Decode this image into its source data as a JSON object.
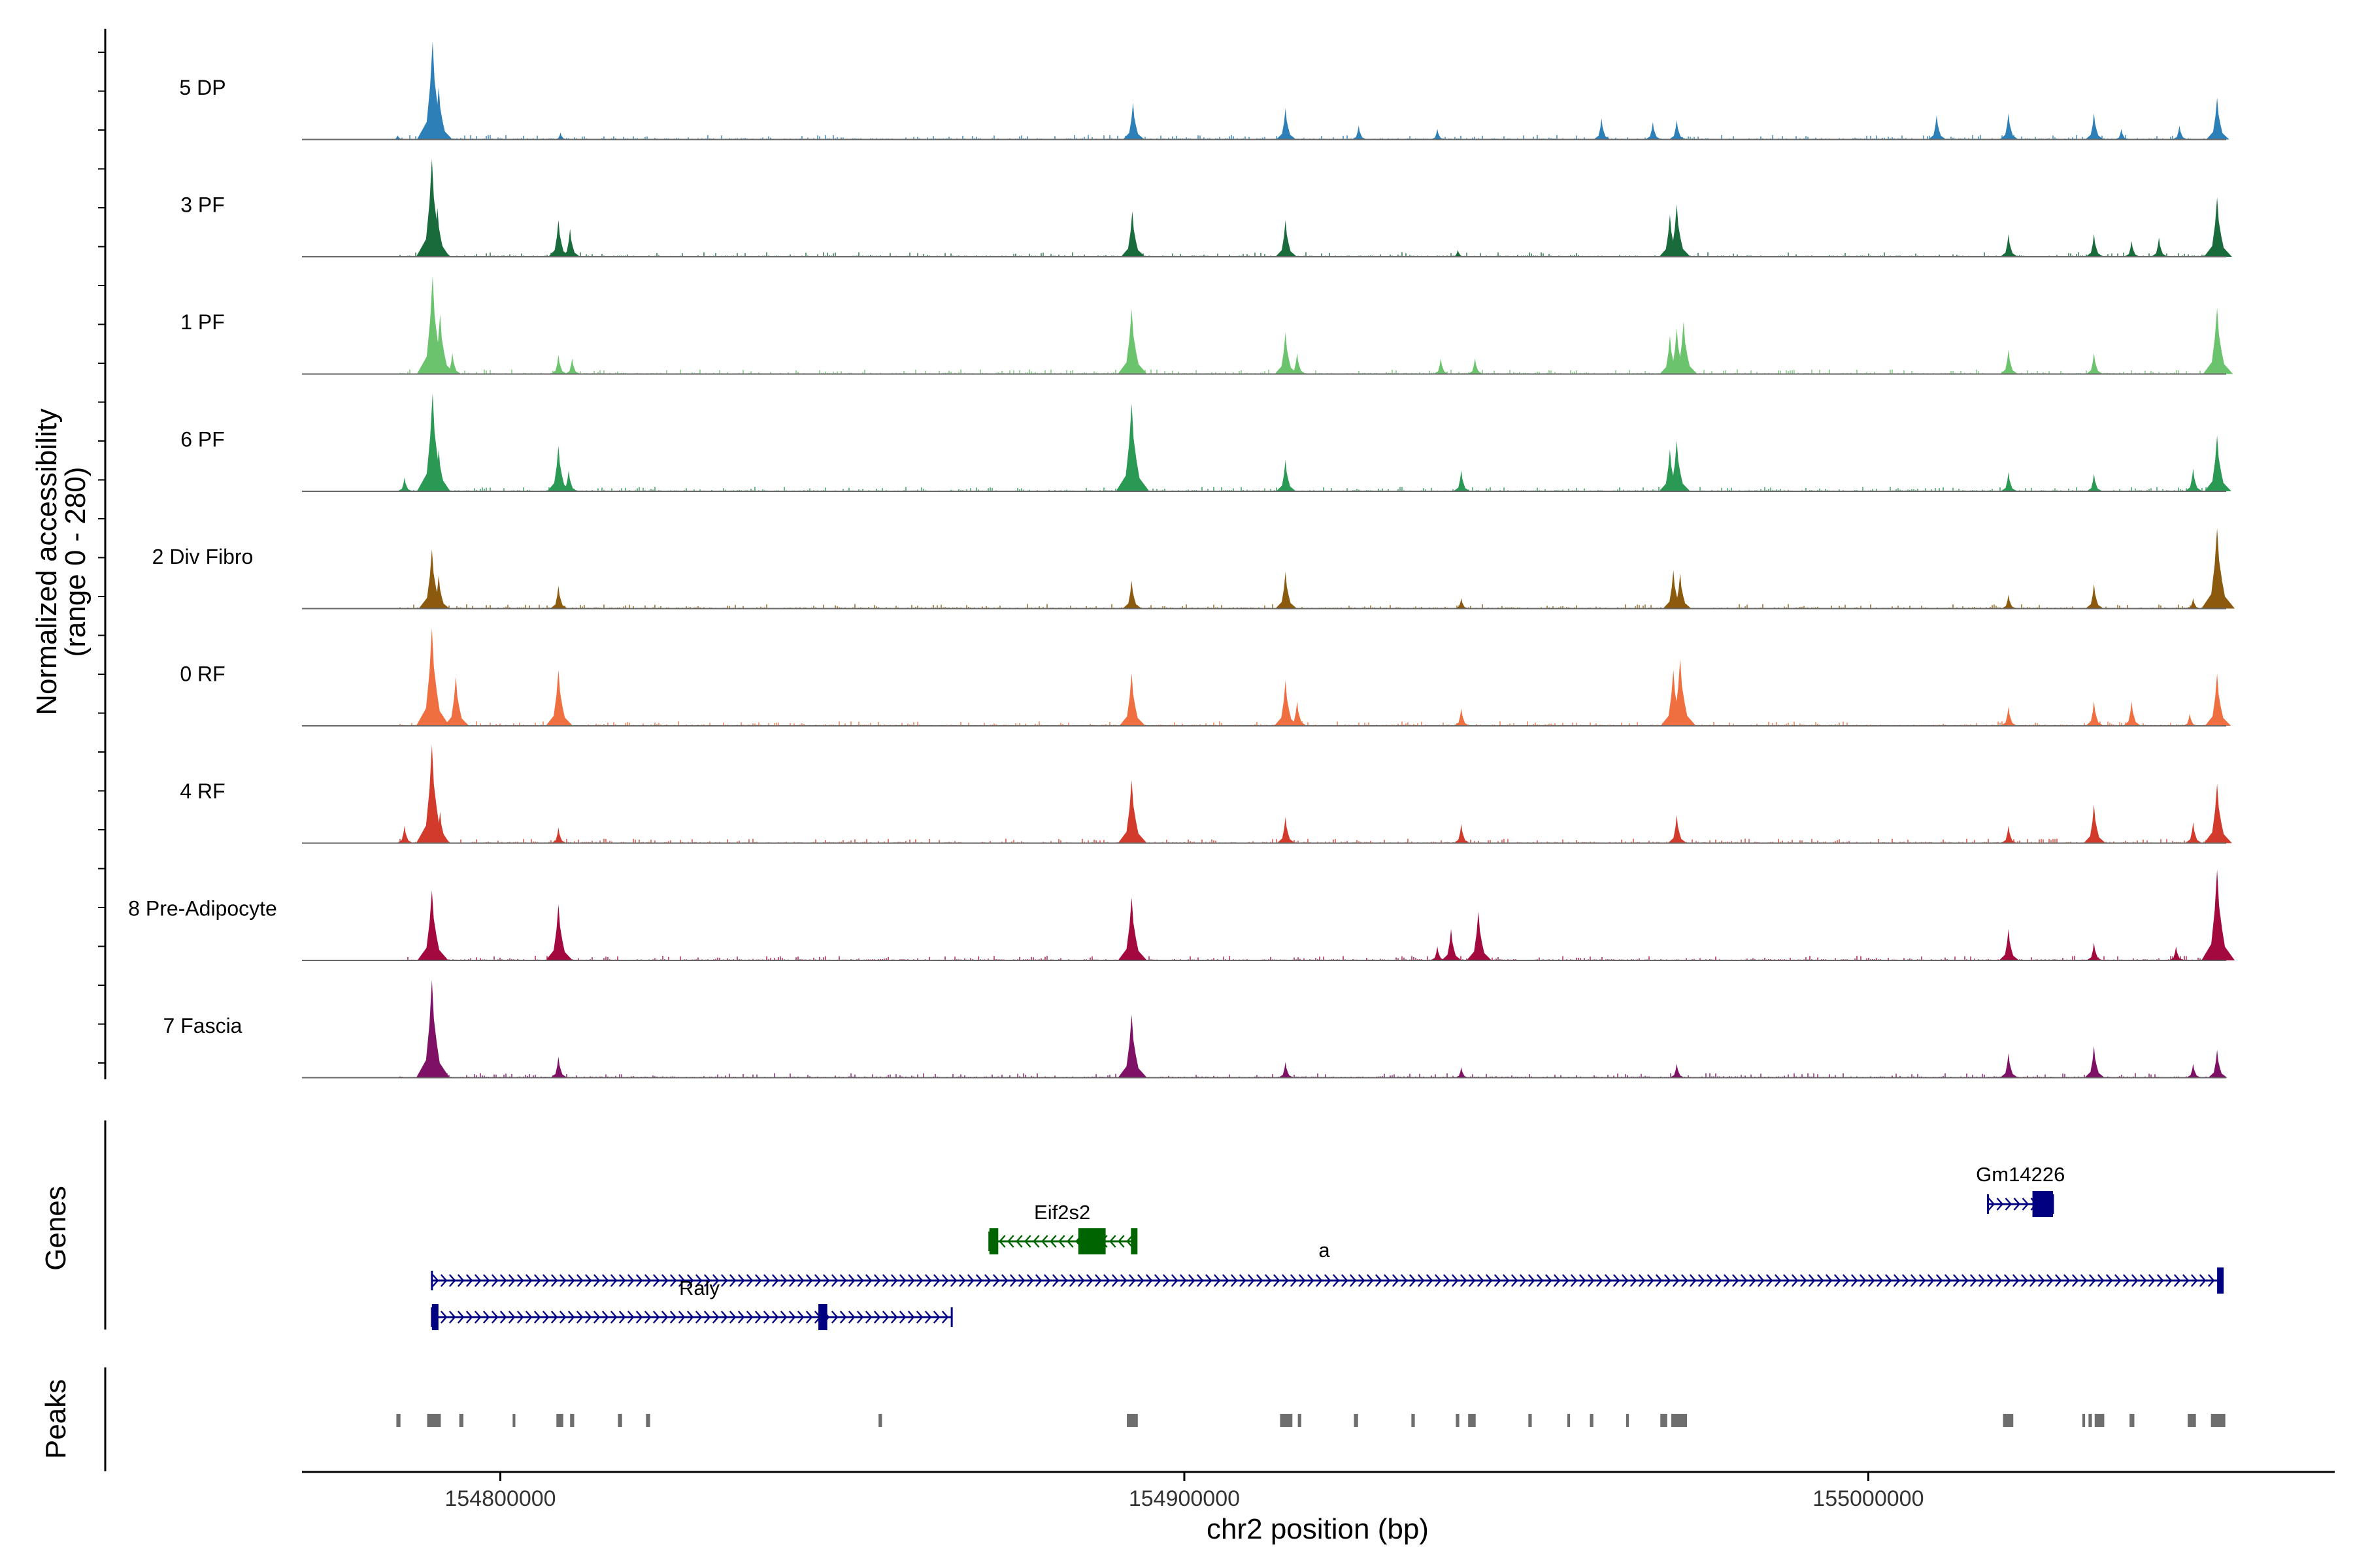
{
  "chart_data": {
    "type": "area",
    "title": "",
    "ylabel": "Normalized accessibility\n(range 0 - 280)",
    "ylabel_lines": [
      "Normalized accessibility",
      "(range 0 - 280)"
    ],
    "y_range": [
      0,
      280
    ],
    "xlabel": "chr2 position (bp)",
    "x_range": [
      154771000,
      155068000
    ],
    "x_ticks": [
      154800000,
      154900000,
      155000000
    ],
    "x_tick_labels": [
      "154800000",
      "154900000",
      "155000000"
    ],
    "grid": false,
    "series": [
      {
        "name": "5 DP",
        "color": "#2d7fb8",
        "peaks": [
          [
            154785000,
            12
          ],
          [
            154790100,
            280
          ],
          [
            154791000,
            150
          ],
          [
            154808800,
            20
          ],
          [
            154892500,
            105
          ],
          [
            154914800,
            90
          ],
          [
            154925500,
            40
          ],
          [
            154937000,
            30
          ],
          [
            154961000,
            60
          ],
          [
            154968500,
            50
          ],
          [
            154972000,
            55
          ],
          [
            155010000,
            70
          ],
          [
            155020500,
            75
          ],
          [
            155033000,
            75
          ],
          [
            155037000,
            30
          ],
          [
            155045500,
            40
          ],
          [
            155051000,
            120
          ]
        ]
      },
      {
        "name": "3 PF",
        "color": "#1a6b3c",
        "peaks": [
          [
            154790000,
            280
          ],
          [
            154790800,
            140
          ],
          [
            154808500,
            105
          ],
          [
            154810200,
            80
          ],
          [
            154892400,
            130
          ],
          [
            154914800,
            105
          ],
          [
            154940000,
            20
          ],
          [
            154971000,
            120
          ],
          [
            154972000,
            150
          ],
          [
            155020500,
            65
          ],
          [
            155033000,
            65
          ],
          [
            155038500,
            45
          ],
          [
            155042500,
            55
          ],
          [
            155051000,
            170
          ]
        ]
      },
      {
        "name": "1 PF",
        "color": "#6cc36e",
        "peaks": [
          [
            154790100,
            280
          ],
          [
            154791200,
            170
          ],
          [
            154793000,
            60
          ],
          [
            154808500,
            55
          ],
          [
            154810500,
            45
          ],
          [
            154892300,
            185
          ],
          [
            154914800,
            120
          ],
          [
            154916500,
            60
          ],
          [
            154937500,
            45
          ],
          [
            154942500,
            45
          ],
          [
            154971000,
            110
          ],
          [
            154972000,
            130
          ],
          [
            154973000,
            150
          ],
          [
            155020500,
            70
          ],
          [
            155033000,
            60
          ],
          [
            155051000,
            190
          ]
        ]
      },
      {
        "name": "6 PF",
        "color": "#2a9954",
        "peaks": [
          [
            154786000,
            40
          ],
          [
            154790100,
            280
          ],
          [
            154791000,
            120
          ],
          [
            154808500,
            130
          ],
          [
            154810000,
            60
          ],
          [
            154892300,
            250
          ],
          [
            154914800,
            90
          ],
          [
            154940500,
            60
          ],
          [
            154971000,
            120
          ],
          [
            154972000,
            145
          ],
          [
            155020500,
            55
          ],
          [
            155033000,
            50
          ],
          [
            155047500,
            65
          ],
          [
            155051000,
            160
          ]
        ]
      },
      {
        "name": "2 Div Fibro",
        "color": "#8b5a0e",
        "peaks": [
          [
            154790000,
            170
          ],
          [
            154791000,
            95
          ],
          [
            154808500,
            65
          ],
          [
            154892300,
            80
          ],
          [
            154914800,
            105
          ],
          [
            154940500,
            30
          ],
          [
            154971500,
            110
          ],
          [
            154972500,
            100
          ],
          [
            155020500,
            40
          ],
          [
            155033000,
            70
          ],
          [
            155047500,
            30
          ],
          [
            155051000,
            230
          ]
        ]
      },
      {
        "name": "0 RF",
        "color": "#ef6f41",
        "peaks": [
          [
            154790000,
            280
          ],
          [
            154793500,
            140
          ],
          [
            154808500,
            160
          ],
          [
            154892300,
            150
          ],
          [
            154914800,
            130
          ],
          [
            154916500,
            70
          ],
          [
            154940500,
            50
          ],
          [
            154971500,
            160
          ],
          [
            154972500,
            190
          ],
          [
            155020500,
            55
          ],
          [
            155033000,
            70
          ],
          [
            155038500,
            70
          ],
          [
            155047000,
            35
          ],
          [
            155051000,
            150
          ]
        ]
      },
      {
        "name": "4 RF",
        "color": "#d23a2b",
        "peaks": [
          [
            154786000,
            50
          ],
          [
            154790000,
            280
          ],
          [
            154791200,
            90
          ],
          [
            154808500,
            45
          ],
          [
            154892300,
            180
          ],
          [
            154914800,
            75
          ],
          [
            154940500,
            55
          ],
          [
            154972000,
            80
          ],
          [
            155020500,
            50
          ],
          [
            155033000,
            110
          ],
          [
            155047500,
            60
          ],
          [
            155051000,
            170
          ]
        ]
      },
      {
        "name": "8 Pre-Adipocyte",
        "color": "#a3093f",
        "peaks": [
          [
            154790000,
            200
          ],
          [
            154808500,
            160
          ],
          [
            154892300,
            180
          ],
          [
            154937000,
            40
          ],
          [
            154939000,
            90
          ],
          [
            154943000,
            140
          ],
          [
            155020500,
            90
          ],
          [
            155033000,
            50
          ],
          [
            155045000,
            40
          ],
          [
            155051000,
            260
          ]
        ]
      },
      {
        "name": "7 Fascia",
        "color": "#7e1066",
        "peaks": [
          [
            154790000,
            280
          ],
          [
            154808500,
            60
          ],
          [
            154892300,
            180
          ],
          [
            154914800,
            45
          ],
          [
            154940500,
            30
          ],
          [
            154972000,
            40
          ],
          [
            155020500,
            70
          ],
          [
            155033000,
            90
          ],
          [
            155047500,
            40
          ],
          [
            155051000,
            80
          ]
        ]
      }
    ],
    "genes": [
      {
        "name": "Eif2s2",
        "label": "Eif2s2",
        "color": "#006400",
        "strand": "-",
        "start": 154871500,
        "end": 154892800,
        "exons": [
          [
            154871500,
            154872800
          ],
          [
            154884500,
            154888500
          ],
          [
            154892200,
            154892800
          ]
        ],
        "row": 0
      },
      {
        "name": "Gm14226",
        "label": "Gm14226",
        "color": "#000080",
        "strand": "+",
        "start": 155017500,
        "end": 155027000,
        "exons": [
          [
            155024000,
            155027000
          ]
        ],
        "row": -1
      },
      {
        "name": "a",
        "label": "a",
        "color": "#000080",
        "strand": "+",
        "start": 154790000,
        "end": 155051500,
        "exons": [
          [
            155051000,
            155051500
          ]
        ],
        "row": 1
      },
      {
        "name": "Raly",
        "label": "Raly",
        "color": "#000080",
        "strand": "+",
        "start": 154790000,
        "end": 154866000,
        "exons": [
          [
            154790000,
            154790600
          ],
          [
            154846500,
            154847800
          ]
        ],
        "row": 2
      }
    ],
    "peaks_track": [
      [
        154784800,
        154785400
      ],
      [
        154789300,
        154791300
      ],
      [
        154794000,
        154794600
      ],
      [
        154801800,
        154802200
      ],
      [
        154808200,
        154809200
      ],
      [
        154810200,
        154810800
      ],
      [
        154817200,
        154817800
      ],
      [
        154821300,
        154821900
      ],
      [
        154855300,
        154855800
      ],
      [
        154891600,
        154893200
      ],
      [
        154914000,
        154915800
      ],
      [
        154916600,
        154917100
      ],
      [
        154924800,
        154925400
      ],
      [
        154933200,
        154933700
      ],
      [
        154939700,
        154940200
      ],
      [
        154941500,
        154942600
      ],
      [
        154950300,
        154950800
      ],
      [
        154956000,
        154956400
      ],
      [
        154959300,
        154959800
      ],
      [
        154964600,
        154965000
      ],
      [
        154969600,
        154970600
      ],
      [
        154971200,
        154973500
      ],
      [
        155019700,
        155021200
      ],
      [
        155031300,
        155031700
      ],
      [
        155032200,
        155032700
      ],
      [
        155033100,
        155034500
      ],
      [
        155038200,
        155038900
      ],
      [
        155046700,
        155047900
      ],
      [
        155050100,
        155052200
      ]
    ]
  },
  "panels": {
    "genes_title": "Genes",
    "peaks_title": "Peaks"
  }
}
